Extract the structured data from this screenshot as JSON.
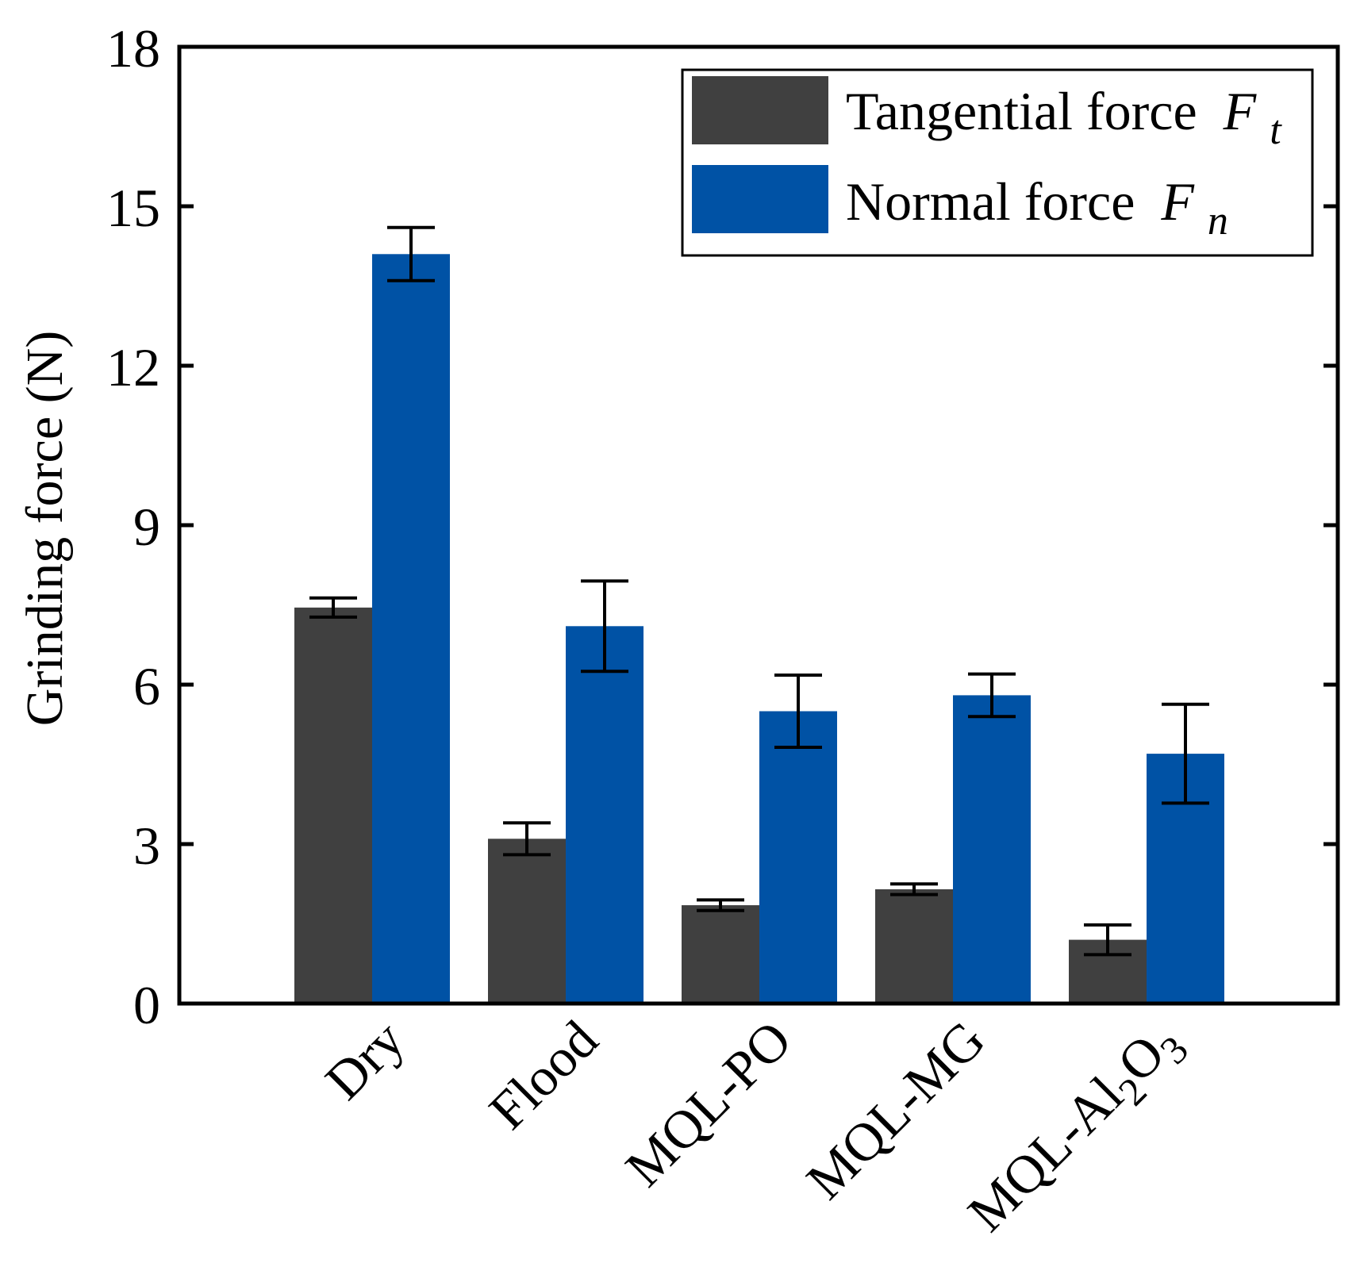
{
  "chart_data": {
    "type": "bar",
    "title": "",
    "xlabel": "",
    "ylabel": "Grinding force (N)",
    "ylim": [
      0,
      18
    ],
    "yticks": [
      "0",
      "3",
      "6",
      "9",
      "12",
      "15",
      "18"
    ],
    "grid": false,
    "legend_position": "top-right",
    "categories": [
      {
        "main": "Dry"
      },
      {
        "main": "Flood"
      },
      {
        "main": "MQL-PO"
      },
      {
        "main": "MQL-MG"
      },
      {
        "main": "MQL-Al",
        "sub1": "2",
        "mid": "O",
        "sub2": "3",
        "full": "MQL-Al2O3"
      }
    ],
    "series": [
      {
        "name": "Tangential force",
        "symbol": "F",
        "subscript": "t",
        "color": "#404040",
        "values": [
          7.45,
          3.1,
          1.85,
          2.15,
          1.2
        ],
        "errors": [
          0.18,
          0.3,
          0.1,
          0.1,
          0.28
        ]
      },
      {
        "name": "Normal force",
        "symbol": "F",
        "subscript": "n",
        "color": "#0052a5",
        "values": [
          14.1,
          7.1,
          5.5,
          5.8,
          4.7
        ],
        "errors": [
          0.5,
          0.85,
          0.68,
          0.4,
          0.93
        ]
      }
    ]
  }
}
